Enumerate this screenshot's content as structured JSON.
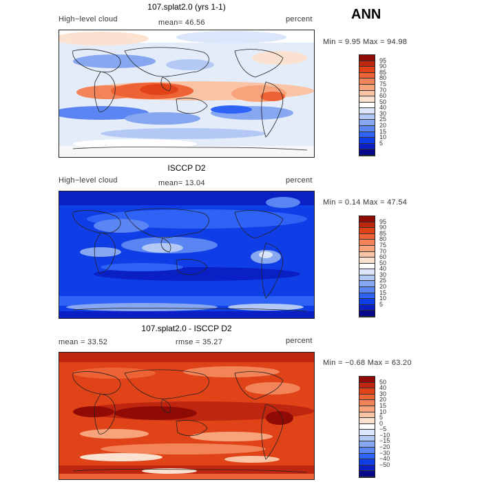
{
  "season": "ANN",
  "panels": [
    {
      "title": "107.splat2.0 (yrs 1-1)",
      "left_label": "High−level cloud",
      "stat_text": "mean=  46.56",
      "units": "percent",
      "minmax_text": "Min =   9.95 Max =  94.98",
      "colorbar": {
        "colors": [
          "#08088a",
          "#0a1fc4",
          "#0f3ee6",
          "#2f63f5",
          "#5b85f2",
          "#87a7f0",
          "#b3c8f5",
          "#dce6fa",
          "#ffffff",
          "#fbe2d0",
          "#f9c4a6",
          "#f7a47c",
          "#f38358",
          "#ee6335",
          "#e04318",
          "#bf2610",
          "#900a06"
        ],
        "labels": [
          "95",
          "90",
          "85",
          "80",
          "75",
          "70",
          "60",
          "50",
          "40",
          "30",
          "25",
          "20",
          "15",
          "10",
          "5"
        ]
      }
    },
    {
      "title": "ISCCP D2",
      "left_label": "High−level cloud",
      "stat_text": "mean=  13.04",
      "units": "percent",
      "minmax_text": "Min =   0.14 Max =  47.54",
      "colorbar": {
        "colors": [
          "#08088a",
          "#0a1fc4",
          "#0f3ee6",
          "#2f63f5",
          "#5b85f2",
          "#87a7f0",
          "#b3c8f5",
          "#dce6fa",
          "#ffffff",
          "#fbe2d0",
          "#f9c4a6",
          "#f7a47c",
          "#f38358",
          "#ee6335",
          "#e04318",
          "#bf2610",
          "#900a06"
        ],
        "labels": [
          "95",
          "90",
          "85",
          "80",
          "75",
          "70",
          "60",
          "50",
          "40",
          "30",
          "25",
          "20",
          "15",
          "10",
          "5"
        ]
      }
    },
    {
      "title": "107.splat2.0 - ISCCP D2",
      "stat_text": "mean =   33.52",
      "rmse_text": "rmse =   35.27",
      "units": "percent",
      "minmax_text": "Min =  −0.68 Max =  63.20",
      "colorbar": {
        "colors": [
          "#08088a",
          "#0a1fc4",
          "#0f3ee6",
          "#2f63f5",
          "#5b85f2",
          "#87a7f0",
          "#b3c8f5",
          "#dce6fa",
          "#ffffff",
          "#fbe2d0",
          "#f9c4a6",
          "#f7a47c",
          "#f38358",
          "#ee6335",
          "#e04318",
          "#bf2610",
          "#900a06"
        ],
        "labels": [
          "50",
          "40",
          "30",
          "20",
          "15",
          "10",
          "5",
          "0",
          "−5",
          "−10",
          "−15",
          "−20",
          "−30",
          "−40",
          "−50"
        ]
      }
    }
  ]
}
